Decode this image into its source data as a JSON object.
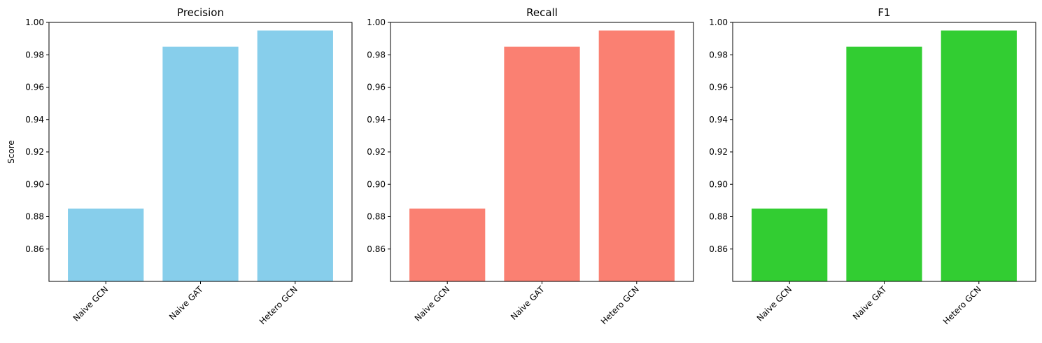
{
  "chart_data": [
    {
      "type": "bar",
      "title": "Precision",
      "ylabel": "Score",
      "xlabel": "",
      "categories": [
        "Naive GCN",
        "Naive GAT",
        "Hetero GCN"
      ],
      "values": [
        0.885,
        0.985,
        0.995
      ],
      "color": "#87ceeb",
      "ylim": [
        0.84,
        1.0
      ],
      "yticks": [
        "0.86",
        "0.88",
        "0.90",
        "0.92",
        "0.94",
        "0.96",
        "0.98",
        "1.00"
      ],
      "grid": false
    },
    {
      "type": "bar",
      "title": "Recall",
      "ylabel": "",
      "xlabel": "",
      "categories": [
        "Naive GCN",
        "Naive GAT",
        "Hetero GCN"
      ],
      "values": [
        0.885,
        0.985,
        0.995
      ],
      "color": "#fa8072",
      "ylim": [
        0.84,
        1.0
      ],
      "yticks": [
        "0.86",
        "0.88",
        "0.90",
        "0.92",
        "0.94",
        "0.96",
        "0.98",
        "1.00"
      ],
      "grid": false
    },
    {
      "type": "bar",
      "title": "F1",
      "ylabel": "",
      "xlabel": "",
      "categories": [
        "Naive GCN",
        "Naive GAT",
        "Hetero GCN"
      ],
      "values": [
        0.885,
        0.985,
        0.995
      ],
      "color": "#32cd32",
      "ylim": [
        0.84,
        1.0
      ],
      "yticks": [
        "0.86",
        "0.88",
        "0.90",
        "0.92",
        "0.94",
        "0.96",
        "0.98",
        "1.00"
      ],
      "grid": false
    }
  ]
}
